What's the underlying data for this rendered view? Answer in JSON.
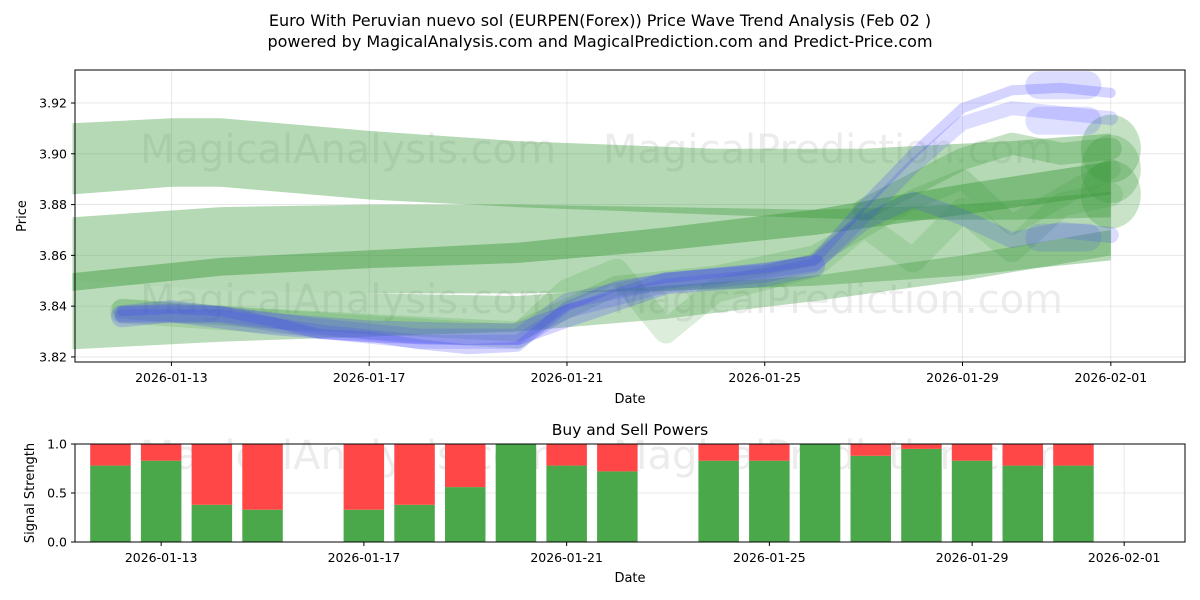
{
  "chart_data": [
    {
      "type": "area",
      "title_line1": "Euro With Peruvian nuevo sol (EURPEN(Forex)) Price Wave Trend Analysis (Feb 02 )",
      "title_line2": "powered by MagicalAnalysis.com and MagicalPrediction.com and Predict-Price.com",
      "xlabel": "Date",
      "ylabel": "Price",
      "xlim": [
        "2026-01-11",
        "2026-02-02"
      ],
      "ylim": [
        3.818,
        3.933
      ],
      "x_ticks": [
        "2026-01-13",
        "2026-01-17",
        "2026-01-21",
        "2026-01-25",
        "2026-01-29",
        "2026-02-01"
      ],
      "y_ticks": [
        3.82,
        3.84,
        3.86,
        3.88,
        3.9,
        3.92
      ],
      "y_tick_labels": [
        "3.82",
        "3.84",
        "3.86",
        "3.88",
        "3.90",
        "3.92"
      ],
      "watermarks": [
        "MagicalAnalysis.com",
        "MagicalPrediction.com",
        "MagicalAnalysis.com",
        "MagicalPrediction.com"
      ],
      "green_bands": [
        {
          "x": [
            "2026-01-11",
            "2026-01-13",
            "2026-01-14",
            "2026-01-17",
            "2026-01-20",
            "2026-01-24",
            "2026-01-27",
            "2026-01-30",
            "2026-02-01"
          ],
          "upper": [
            3.912,
            3.914,
            3.914,
            3.909,
            3.905,
            3.902,
            3.902,
            3.905,
            3.908
          ],
          "lower": [
            3.884,
            3.887,
            3.887,
            3.882,
            3.879,
            3.876,
            3.874,
            3.874,
            3.875
          ],
          "opacity": 0.38
        },
        {
          "x": [
            "2026-01-11",
            "2026-01-14",
            "2026-01-17",
            "2026-01-20",
            "2026-01-23",
            "2026-01-26",
            "2026-01-29",
            "2026-02-01"
          ],
          "upper": [
            3.875,
            3.879,
            3.88,
            3.88,
            3.879,
            3.878,
            3.88,
            3.885
          ],
          "lower": [
            3.85,
            3.846,
            3.845,
            3.845,
            3.846,
            3.848,
            3.852,
            3.858
          ],
          "opacity": 0.38
        },
        {
          "x": [
            "2026-01-11",
            "2026-01-14",
            "2026-01-17",
            "2026-01-20",
            "2026-01-23",
            "2026-01-26",
            "2026-01-29",
            "2026-02-01"
          ],
          "upper": [
            3.85,
            3.846,
            3.845,
            3.844,
            3.848,
            3.852,
            3.86,
            3.87
          ],
          "lower": [
            3.823,
            3.826,
            3.828,
            3.83,
            3.835,
            3.842,
            3.85,
            3.86
          ],
          "opacity": 0.35
        },
        {
          "x": [
            "2026-01-11",
            "2026-01-14",
            "2026-01-17",
            "2026-01-20",
            "2026-01-23",
            "2026-01-26",
            "2026-01-29",
            "2026-02-01"
          ],
          "upper": [
            3.853,
            3.859,
            3.862,
            3.865,
            3.871,
            3.878,
            3.888,
            3.897
          ],
          "lower": [
            3.846,
            3.852,
            3.855,
            3.857,
            3.862,
            3.868,
            3.876,
            3.884
          ],
          "opacity": 0.45
        }
      ],
      "green_lines": [
        {
          "x": [
            "2026-01-12",
            "2026-01-15",
            "2026-01-20",
            "2026-01-21",
            "2026-01-22",
            "2026-01-23",
            "2026-01-24",
            "2026-01-26",
            "2026-01-27",
            "2026-01-28",
            "2026-01-29",
            "2026-01-30",
            "2026-01-31",
            "2026-02-01"
          ],
          "y": [
            3.838,
            3.834,
            3.828,
            3.846,
            3.854,
            3.83,
            3.846,
            3.856,
            3.872,
            3.858,
            3.878,
            3.862,
            3.88,
            3.884
          ],
          "width": 24,
          "opacity": 0.18
        },
        {
          "x": [
            "2026-01-12",
            "2026-01-15",
            "2026-01-20",
            "2026-01-22",
            "2026-01-24",
            "2026-01-26",
            "2026-01-28",
            "2026-01-29",
            "2026-01-30",
            "2026-02-01"
          ],
          "y": [
            3.839,
            3.835,
            3.83,
            3.848,
            3.852,
            3.86,
            3.882,
            3.89,
            3.872,
            3.894
          ],
          "width": 20,
          "opacity": 0.2
        },
        {
          "x": [
            "2026-01-27",
            "2026-01-28",
            "2026-01-29",
            "2026-01-30",
            "2026-01-31",
            "2026-02-01"
          ],
          "y": [
            3.878,
            3.888,
            3.898,
            3.904,
            3.9,
            3.902
          ],
          "width": 22,
          "opacity": 0.3
        }
      ],
      "blue_lines": [
        {
          "x": [
            "2026-01-12",
            "2026-01-13",
            "2026-01-14",
            "2026-01-15",
            "2026-01-16",
            "2026-01-17",
            "2026-01-18",
            "2026-01-19",
            "2026-01-20",
            "2026-01-21",
            "2026-01-22",
            "2026-01-23",
            "2026-01-24",
            "2026-01-25",
            "2026-01-26",
            "2026-01-27",
            "2026-01-28",
            "2026-01-29",
            "2026-01-30",
            "2026-01-31",
            "2026-02-01"
          ],
          "y": [
            3.838,
            3.839,
            3.838,
            3.834,
            3.829,
            3.828,
            3.825,
            3.823,
            3.824,
            3.84,
            3.848,
            3.851,
            3.853,
            3.855,
            3.858,
            3.88,
            3.9,
            3.918,
            3.925,
            3.926,
            3.924
          ],
          "width": 10,
          "opacity": 0.22
        },
        {
          "x": [
            "2026-01-12",
            "2026-01-14",
            "2026-01-16",
            "2026-01-18",
            "2026-01-20",
            "2026-01-21",
            "2026-01-23",
            "2026-01-25",
            "2026-01-26",
            "2026-01-27",
            "2026-01-28",
            "2026-01-29",
            "2026-01-30",
            "2026-01-31",
            "2026-02-01"
          ],
          "y": [
            3.836,
            3.836,
            3.83,
            3.826,
            3.826,
            3.838,
            3.848,
            3.852,
            3.856,
            3.875,
            3.895,
            3.912,
            3.918,
            3.916,
            3.914
          ],
          "width": 14,
          "opacity": 0.18
        },
        {
          "x": [
            "2026-01-12",
            "2026-01-14",
            "2026-01-16",
            "2026-01-18",
            "2026-01-20",
            "2026-01-21",
            "2026-01-23",
            "2026-01-25",
            "2026-01-26",
            "2026-01-27",
            "2026-01-28",
            "2026-01-29",
            "2026-01-30",
            "2026-01-31",
            "2026-02-01"
          ],
          "y": [
            3.837,
            3.837,
            3.832,
            3.828,
            3.828,
            3.842,
            3.85,
            3.854,
            3.857,
            3.873,
            3.882,
            3.875,
            3.866,
            3.87,
            3.868
          ],
          "width": 16,
          "opacity": 0.18
        },
        {
          "x": [
            "2026-01-12",
            "2026-01-13",
            "2026-01-15",
            "2026-01-17",
            "2026-01-19",
            "2026-01-20",
            "2026-01-21",
            "2026-01-23",
            "2026-01-25",
            "2026-01-26"
          ],
          "y": [
            3.836,
            3.838,
            3.833,
            3.83,
            3.829,
            3.829,
            3.836,
            3.849,
            3.852,
            3.856
          ],
          "width": 22,
          "opacity": 0.22
        }
      ],
      "blue_caps": [
        {
          "x": "2026-01-31",
          "y": 3.927,
          "opacity": 0.18
        },
        {
          "x": "2026-01-31",
          "y": 3.913,
          "opacity": 0.16
        },
        {
          "x": "2026-01-31",
          "y": 3.867,
          "opacity": 0.14
        }
      ],
      "green_caps": [
        {
          "x": "2026-02-01",
          "y": 3.902,
          "opacity": 0.3
        },
        {
          "x": "2026-02-01",
          "y": 3.894,
          "opacity": 0.28
        },
        {
          "x": "2026-02-01",
          "y": 3.884,
          "opacity": 0.28
        }
      ]
    },
    {
      "type": "bar",
      "title": "Buy and Sell Powers",
      "xlabel": "Date",
      "ylabel": "Signal Strength",
      "xlim": [
        "2026-01-11",
        "2026-02-02"
      ],
      "ylim": [
        0,
        1.0
      ],
      "x_ticks": [
        "2026-01-13",
        "2026-01-17",
        "2026-01-21",
        "2026-01-25",
        "2026-01-29",
        "2026-02-01"
      ],
      "y_ticks": [
        0.0,
        0.5,
        1.0
      ],
      "y_tick_labels": [
        "0.0",
        "0.5",
        "1.0"
      ],
      "buy_color": "#4aa84a",
      "sell_color": "#ff4747",
      "series": [
        {
          "name": "Buy",
          "color": "#4aa84a"
        },
        {
          "name": "Sell",
          "color": "#ff4747"
        }
      ],
      "bars": [
        {
          "date": "2026-01-12",
          "buy": 0.78
        },
        {
          "date": "2026-01-13",
          "buy": 0.83
        },
        {
          "date": "2026-01-14",
          "buy": 0.38
        },
        {
          "date": "2026-01-15",
          "buy": 0.33
        },
        {
          "date": "2026-01-17",
          "buy": 0.33
        },
        {
          "date": "2026-01-18",
          "buy": 0.38
        },
        {
          "date": "2026-01-19",
          "buy": 0.56
        },
        {
          "date": "2026-01-20",
          "buy": 1.0
        },
        {
          "date": "2026-01-21",
          "buy": 0.78
        },
        {
          "date": "2026-01-22",
          "buy": 0.72
        },
        {
          "date": "2026-01-24",
          "buy": 0.83
        },
        {
          "date": "2026-01-25",
          "buy": 0.83
        },
        {
          "date": "2026-01-26",
          "buy": 1.0
        },
        {
          "date": "2026-01-27",
          "buy": 0.88
        },
        {
          "date": "2026-01-28",
          "buy": 0.95
        },
        {
          "date": "2026-01-29",
          "buy": 0.83
        },
        {
          "date": "2026-01-30",
          "buy": 0.78
        },
        {
          "date": "2026-01-31",
          "buy": 0.78
        }
      ]
    }
  ]
}
